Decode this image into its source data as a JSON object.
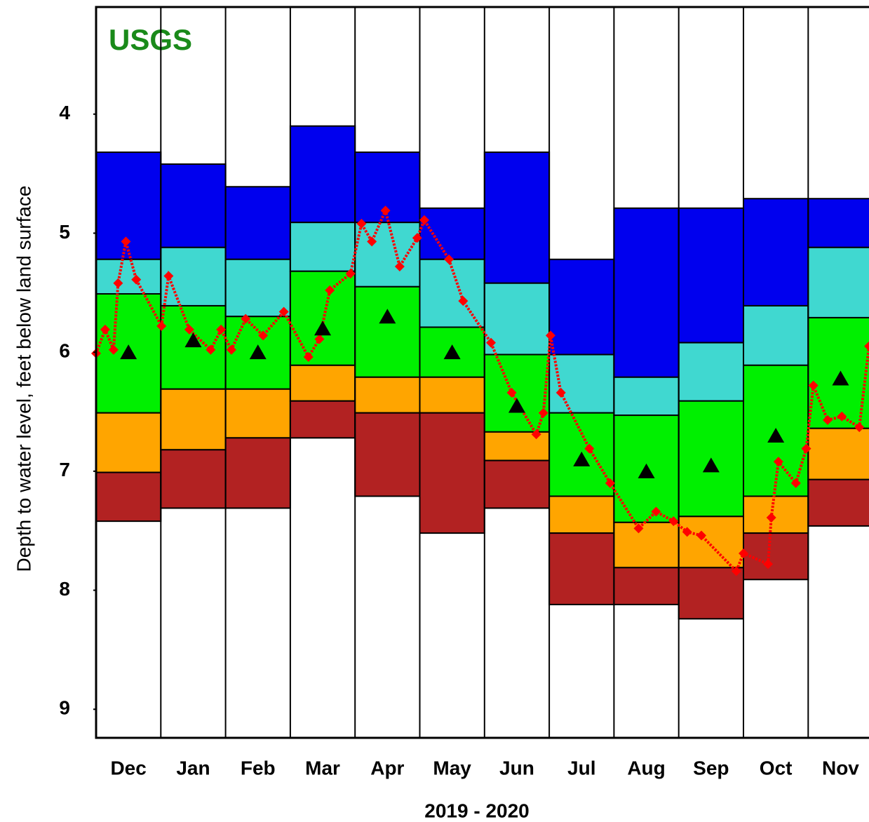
{
  "chart_data": {
    "type": "percentile_line",
    "brand": "USGS",
    "y_label": "Depth to water level, feet below land surface",
    "x_label": "2019 - 2020",
    "categories": [
      "Dec",
      "Jan",
      "Feb",
      "Mar",
      "Apr",
      "May",
      "Jun",
      "Jul",
      "Aug",
      "Sep",
      "Oct",
      "Nov"
    ],
    "ylim": [
      3.1,
      9.24
    ],
    "y_inverted": true,
    "yticks": [
      4,
      5,
      6,
      7,
      8,
      9
    ],
    "xlim": [
      0,
      12
    ],
    "bands": {
      "colors": [
        "#0000ee",
        "#40d8d0",
        "#00f000",
        "#ffa500",
        "#b22222"
      ],
      "edges": [
        [
          4.32,
          4.42,
          4.61,
          4.1,
          4.32,
          4.79,
          4.32,
          5.22,
          4.79,
          4.79,
          4.71,
          4.71
        ],
        [
          5.22,
          5.12,
          5.22,
          4.91,
          4.91,
          5.22,
          5.42,
          6.02,
          6.21,
          5.92,
          5.61,
          5.12
        ],
        [
          5.51,
          5.61,
          5.7,
          5.32,
          5.45,
          5.79,
          6.02,
          6.51,
          6.53,
          6.41,
          6.11,
          5.71
        ],
        [
          6.51,
          6.31,
          6.31,
          6.11,
          6.21,
          6.21,
          6.67,
          7.21,
          7.43,
          7.38,
          7.21,
          6.64
        ],
        [
          7.01,
          6.82,
          6.72,
          6.41,
          6.51,
          6.51,
          6.91,
          7.52,
          7.81,
          7.81,
          7.52,
          7.07
        ],
        [
          7.42,
          7.31,
          7.31,
          6.72,
          7.21,
          7.52,
          7.31,
          8.12,
          8.12,
          8.24,
          7.91,
          7.46
        ]
      ]
    },
    "medians": {
      "color": "#000000",
      "values": [
        6.0,
        5.9,
        6.0,
        5.8,
        5.7,
        6.0,
        6.45,
        6.9,
        7.0,
        6.95,
        6.7,
        6.22
      ]
    },
    "series": [
      {
        "color": "#ff0000",
        "x": [
          0,
          0.14,
          0.27,
          0.34,
          0.46,
          0.62,
          1.01,
          1.12,
          1.44,
          1.77,
          1.93,
          2.09,
          2.31,
          2.58,
          2.9,
          3.28,
          3.45,
          3.61,
          3.93,
          4.1,
          4.26,
          4.47,
          4.69,
          4.96,
          5.07,
          5.45,
          5.67,
          6.1,
          6.42,
          6.8,
          6.91,
          7.02,
          7.18,
          7.62,
          7.94,
          8.38,
          8.65,
          8.92,
          9.13,
          9.35,
          9.89,
          10.0,
          10.38,
          10.43,
          10.54,
          10.81,
          10.97,
          11.08,
          11.3,
          11.52,
          11.79,
          11.94
        ],
        "values": [
          6.01,
          5.81,
          5.98,
          5.42,
          5.07,
          5.39,
          5.78,
          5.36,
          5.81,
          5.98,
          5.81,
          5.98,
          5.72,
          5.86,
          5.66,
          6.04,
          5.89,
          5.48,
          5.34,
          4.92,
          5.07,
          4.81,
          5.28,
          5.04,
          4.89,
          5.22,
          5.57,
          5.92,
          6.34,
          6.69,
          6.51,
          5.86,
          6.34,
          6.81,
          7.1,
          7.48,
          7.34,
          7.42,
          7.51,
          7.54,
          7.84,
          7.69,
          7.78,
          7.39,
          6.92,
          7.1,
          6.81,
          6.28,
          6.57,
          6.54,
          6.63,
          5.95
        ]
      }
    ]
  }
}
